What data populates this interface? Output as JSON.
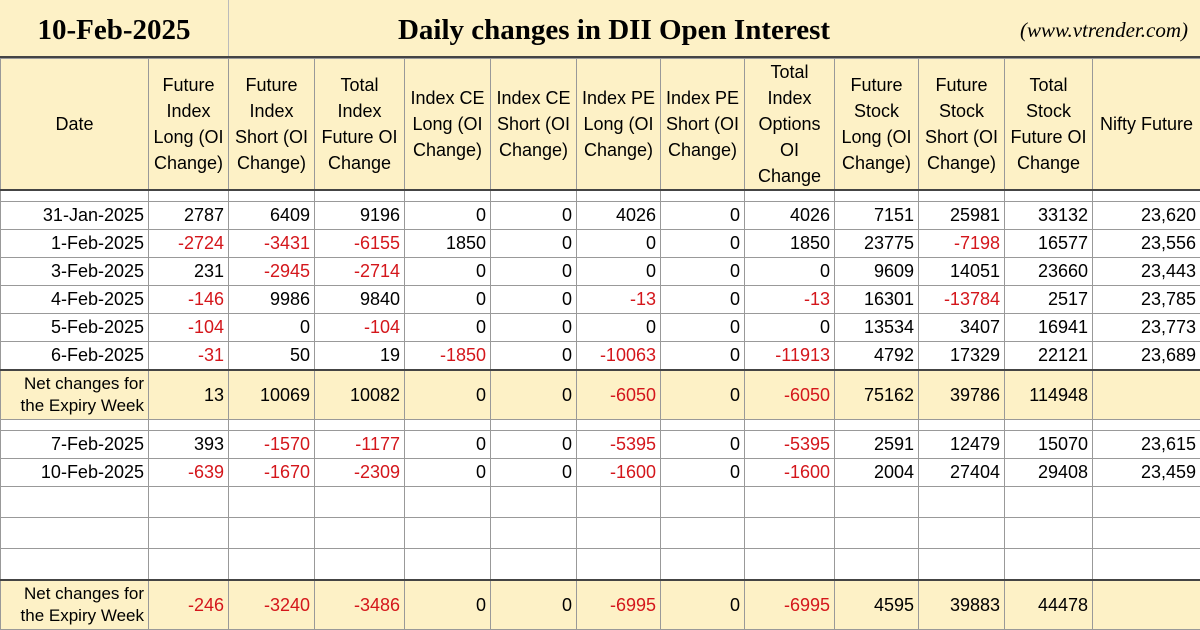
{
  "header": {
    "date": "10-Feb-2025",
    "title": "Daily changes in DII Open Interest",
    "site": "(www.vtrender.com)"
  },
  "columns": [
    "Date",
    "Future Index Long (OI Change)",
    "Future Index Short (OI Change)",
    "Total Index Future OI Change",
    "Index CE Long (OI Change)",
    "Index CE Short (OI Change)",
    "Index PE Long (OI Change)",
    "Index PE Short (OI Change)",
    "Total Index Options OI Change",
    "Future Stock Long (OI Change)",
    "Future Stock Short (OI Change)",
    "Total Stock Future OI Change",
    "Nifty Future"
  ],
  "week1": [
    [
      "31-Jan-2025",
      "2787",
      "6409",
      "9196",
      "0",
      "0",
      "4026",
      "0",
      "4026",
      "7151",
      "25981",
      "33132",
      "23,620"
    ],
    [
      "1-Feb-2025",
      "-2724",
      "-3431",
      "-6155",
      "1850",
      "0",
      "0",
      "0",
      "1850",
      "23775",
      "-7198",
      "16577",
      "23,556"
    ],
    [
      "3-Feb-2025",
      "231",
      "-2945",
      "-2714",
      "0",
      "0",
      "0",
      "0",
      "0",
      "9609",
      "14051",
      "23660",
      "23,443"
    ],
    [
      "4-Feb-2025",
      "-146",
      "9986",
      "9840",
      "0",
      "0",
      "-13",
      "0",
      "-13",
      "16301",
      "-13784",
      "2517",
      "23,785"
    ],
    [
      "5-Feb-2025",
      "-104",
      "0",
      "-104",
      "0",
      "0",
      "0",
      "0",
      "0",
      "13534",
      "3407",
      "16941",
      "23,773"
    ],
    [
      "6-Feb-2025",
      "-31",
      "50",
      "19",
      "-1850",
      "0",
      "-10063",
      "0",
      "-11913",
      "4792",
      "17329",
      "22121",
      "23,689"
    ]
  ],
  "net1": [
    "Net changes for the Expiry Week",
    "13",
    "10069",
    "10082",
    "0",
    "0",
    "-6050",
    "0",
    "-6050",
    "75162",
    "39786",
    "114948",
    ""
  ],
  "week2": [
    [
      "7-Feb-2025",
      "393",
      "-1570",
      "-1177",
      "0",
      "0",
      "-5395",
      "0",
      "-5395",
      "2591",
      "12479",
      "15070",
      "23,615"
    ],
    [
      "10-Feb-2025",
      "-639",
      "-1670",
      "-2309",
      "0",
      "0",
      "-1600",
      "0",
      "-1600",
      "2004",
      "27404",
      "29408",
      "23,459"
    ]
  ],
  "net2": [
    "Net changes for the Expiry Week",
    "-246",
    "-3240",
    "-3486",
    "0",
    "0",
    "-6995",
    "0",
    "-6995",
    "4595",
    "39883",
    "44478",
    ""
  ]
}
